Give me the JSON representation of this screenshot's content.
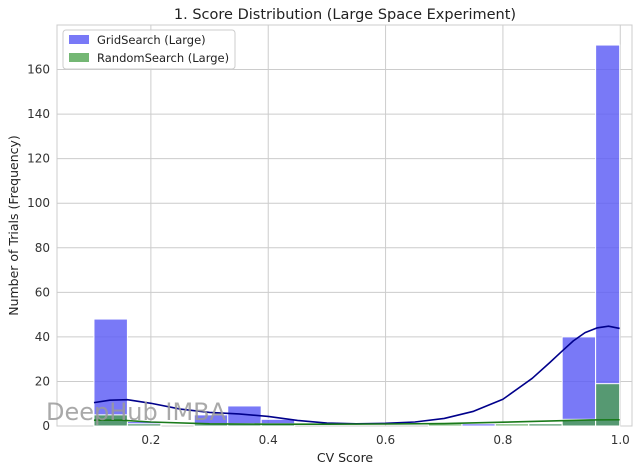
{
  "chart_data": {
    "type": "histogram",
    "title": "1. Score Distribution (Large Space Experiment)",
    "xlabel": "CV Score",
    "ylabel": "Number of Trials (Frequency)",
    "xlim": [
      0.04,
      1.02
    ],
    "ylim": [
      0,
      180
    ],
    "xticks": [
      0.2,
      0.4,
      0.6,
      0.8,
      1.0
    ],
    "xtick_labels": [
      "0.2",
      "0.4",
      "0.6",
      "0.8",
      "1.0"
    ],
    "yticks": [
      0,
      20,
      40,
      60,
      80,
      100,
      120,
      140,
      160
    ],
    "ytick_labels": [
      "0",
      "20",
      "40",
      "60",
      "80",
      "100",
      "120",
      "140",
      "160"
    ],
    "grid": true,
    "legend_position": "top-left",
    "bin_edges": [
      0.103,
      0.16,
      0.217,
      0.274,
      0.331,
      0.388,
      0.445,
      0.502,
      0.559,
      0.616,
      0.673,
      0.73,
      0.787,
      0.844,
      0.901,
      0.958,
      0.999
    ],
    "series": [
      {
        "name": "GridSearch (Large)",
        "color": "#5b5bf5",
        "kde_color": "#00008b",
        "counts": [
          48,
          2,
          0,
          5,
          9,
          3,
          0,
          0,
          0,
          0,
          0,
          1,
          0,
          1,
          40,
          171
        ],
        "kde_x": [
          0.103,
          0.13,
          0.16,
          0.2,
          0.25,
          0.3,
          0.35,
          0.4,
          0.45,
          0.5,
          0.55,
          0.6,
          0.65,
          0.7,
          0.75,
          0.8,
          0.85,
          0.88,
          0.9,
          0.92,
          0.94,
          0.96,
          0.98,
          0.999
        ],
        "kde_y": [
          10.5,
          11.6,
          11.8,
          10.2,
          7.6,
          6.1,
          5.4,
          4.3,
          2.5,
          1.3,
          1.0,
          1.2,
          1.8,
          3.4,
          6.6,
          12.0,
          21.4,
          28.5,
          33.4,
          38.2,
          41.9,
          44.0,
          44.8,
          43.8
        ]
      },
      {
        "name": "RandomSearch (Large)",
        "color": "#4da34d",
        "kde_color": "#1a7a1a",
        "counts": [
          5,
          1,
          0,
          1,
          1,
          1,
          0,
          0,
          0,
          0,
          1,
          0,
          1,
          1,
          3,
          19
        ],
        "kde_x": [
          0.103,
          0.15,
          0.2,
          0.3,
          0.4,
          0.5,
          0.6,
          0.7,
          0.8,
          0.9,
          0.95,
          0.999
        ],
        "kde_y": [
          2.6,
          2.6,
          1.8,
          1.0,
          0.8,
          0.8,
          0.9,
          1.1,
          1.7,
          2.4,
          2.7,
          2.8
        ]
      }
    ]
  },
  "watermark": "DeepHub IMBA"
}
